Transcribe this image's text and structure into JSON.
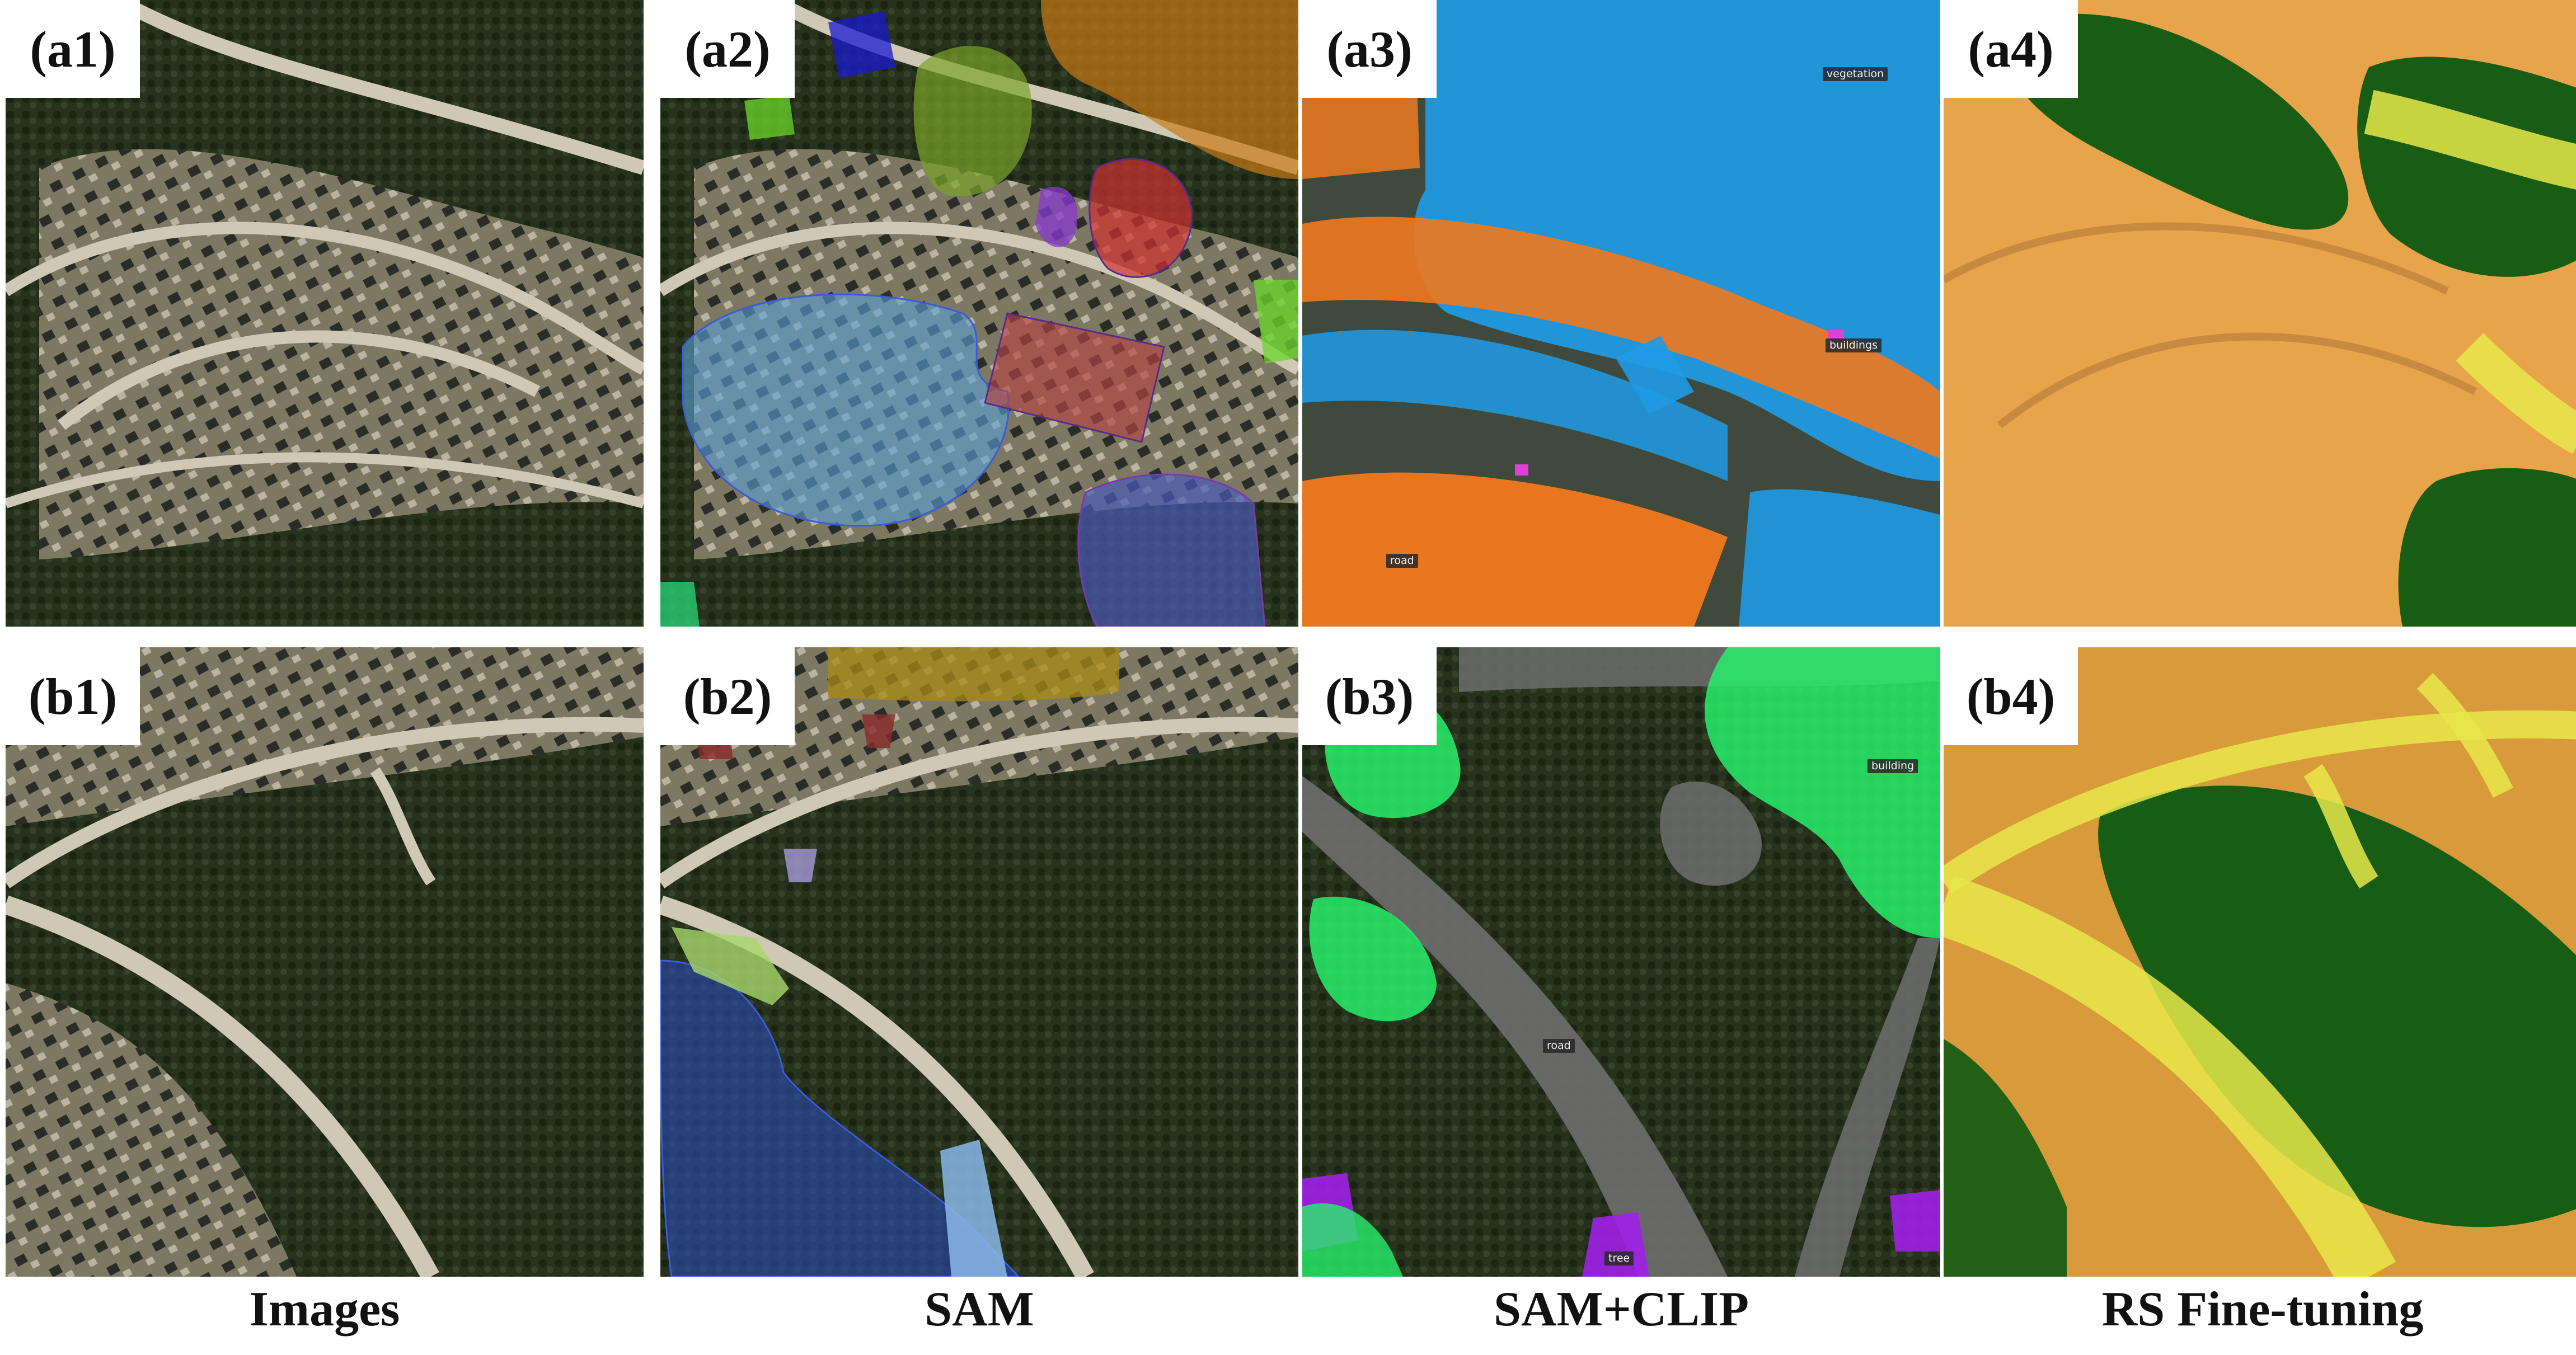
{
  "panels": {
    "a1": "(a1)",
    "a2": "(a2)",
    "a3": "(a3)",
    "a4": "(a4)",
    "b1": "(b1)",
    "b2": "(b2)",
    "b3": "(b3)",
    "b4": "(b4)"
  },
  "segment_labels": {
    "a3_vegetation": "vegetation",
    "a3_buildings": "buildings",
    "a3_road": "road",
    "b3_building": "building",
    "b3_road": "road",
    "b3_tree": "tree"
  },
  "captions": [
    "Images",
    "SAM",
    "SAM+CLIP",
    "RS Fine-tuning"
  ],
  "colors": {
    "terrain": "#6b6a55",
    "forest": "#1f2a16",
    "road": "#c9c2ae",
    "sam_clip_vegetation": "#1e9be6",
    "sam_clip_building": "#f0781e",
    "sam_clip_green": "#27f06b",
    "sam_clip_purple": "#a020e8",
    "rs_orange": "#e8a44a",
    "rs_green": "#0e5a12",
    "rs_yellow": "#e8e84a"
  }
}
